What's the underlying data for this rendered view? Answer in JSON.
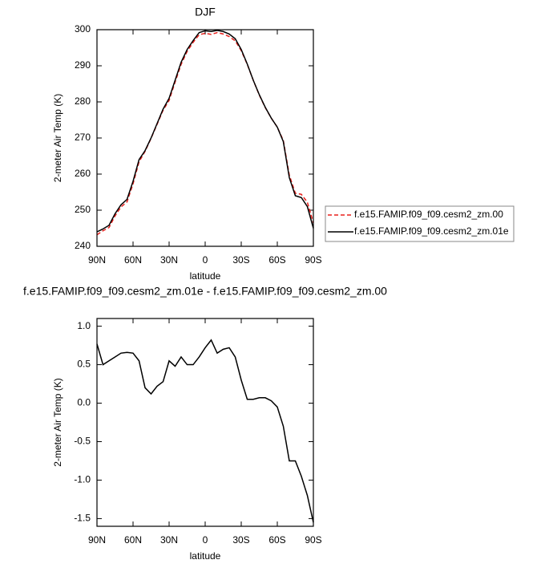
{
  "chart_data": [
    {
      "type": "line",
      "title": "DJF",
      "xlabel": "latitude",
      "ylabel": "2-meter Air Temp (K)",
      "x": [
        90,
        85,
        80,
        75,
        70,
        65,
        60,
        55,
        50,
        45,
        40,
        35,
        30,
        25,
        20,
        15,
        10,
        5,
        0,
        -5,
        -10,
        -15,
        -20,
        -25,
        -30,
        -35,
        -40,
        -45,
        -50,
        -55,
        -60,
        -65,
        -70,
        -75,
        -80,
        -85,
        -90
      ],
      "series": [
        {
          "name": "f.e15.FAMIP.f09_f09.cesm2_zm.00",
          "color": "#e8201c",
          "linestyle": "dashed",
          "values": [
            243.2,
            244.3,
            245.2,
            248.4,
            250.9,
            252.3,
            257.3,
            263.4,
            266.3,
            269.9,
            273.8,
            277.7,
            280.4,
            285.5,
            290.4,
            294,
            296.5,
            298.6,
            299,
            298.7,
            299.2,
            298.8,
            298.1,
            296.9,
            294.2,
            290.4,
            286,
            281.9,
            278.4,
            275.5,
            273,
            269.3,
            259.7,
            254.7,
            254.4,
            252.2,
            246.5
          ]
        },
        {
          "name": "f.e15.FAMIP.f09_f09.cesm2_zm.01e",
          "color": "#000000",
          "linestyle": "solid",
          "values": [
            244,
            244.8,
            245.8,
            249,
            251.5,
            253,
            258,
            264,
            266.5,
            270,
            274,
            278,
            281,
            286,
            291,
            294.5,
            297,
            299.2,
            299.7,
            299.5,
            299.8,
            299.5,
            298.8,
            297.5,
            294.5,
            290.5,
            286,
            282,
            278.5,
            275.5,
            273,
            269,
            259,
            254,
            253.5,
            251,
            245
          ]
        }
      ],
      "xlim": [
        90,
        -90
      ],
      "xticks": [
        {
          "value": 90,
          "label": "90N"
        },
        {
          "value": 60,
          "label": "60N"
        },
        {
          "value": 30,
          "label": "30N"
        },
        0,
        {
          "value": -30,
          "label": "30S"
        },
        {
          "value": -60,
          "label": "60S"
        },
        {
          "value": -90,
          "label": "90S"
        }
      ],
      "ylim": [
        240,
        300
      ],
      "yticks": [
        240,
        250,
        260,
        270,
        280,
        290,
        300
      ],
      "legend": "right"
    },
    {
      "type": "line",
      "title": "f.e15.FAMIP.f09_f09.cesm2_zm.01e - f.e15.FAMIP.f09_f09.cesm2_zm.00",
      "xlabel": "latitude",
      "ylabel": "2-meter Air Temp (K)",
      "x": [
        90,
        85,
        80,
        75,
        70,
        65,
        60,
        55,
        50,
        45,
        40,
        35,
        30,
        25,
        20,
        15,
        10,
        5,
        0,
        -5,
        -10,
        -15,
        -20,
        -25,
        -30,
        -35,
        -40,
        -45,
        -50,
        -55,
        -60,
        -65,
        -70,
        -75,
        -80,
        -85,
        -90
      ],
      "values": [
        0.77,
        0.5,
        0.55,
        0.6,
        0.65,
        0.66,
        0.65,
        0.55,
        0.2,
        0.12,
        0.22,
        0.28,
        0.55,
        0.48,
        0.6,
        0.5,
        0.5,
        0.6,
        0.72,
        0.82,
        0.65,
        0.7,
        0.72,
        0.6,
        0.3,
        0.05,
        0.05,
        0.07,
        0.07,
        0.03,
        -0.05,
        -0.3,
        -0.75,
        -0.75,
        -0.95,
        -1.2,
        -1.55
      ],
      "color": "#000000",
      "xlim": [
        90,
        -90
      ],
      "xticks": [
        {
          "value": 90,
          "label": "90N"
        },
        {
          "value": 60,
          "label": "60N"
        },
        {
          "value": 30,
          "label": "30N"
        },
        0,
        {
          "value": -30,
          "label": "30S"
        },
        {
          "value": -60,
          "label": "60S"
        },
        {
          "value": -90,
          "label": "90S"
        }
      ],
      "ylim": [
        -1.6,
        1.1
      ],
      "yticks": [
        {
          "value": 1,
          "label": "1.0"
        },
        0.5,
        {
          "value": 0,
          "label": "0.0"
        },
        -0.5,
        {
          "value": -1,
          "label": "-1.0"
        },
        -1.5
      ]
    }
  ]
}
